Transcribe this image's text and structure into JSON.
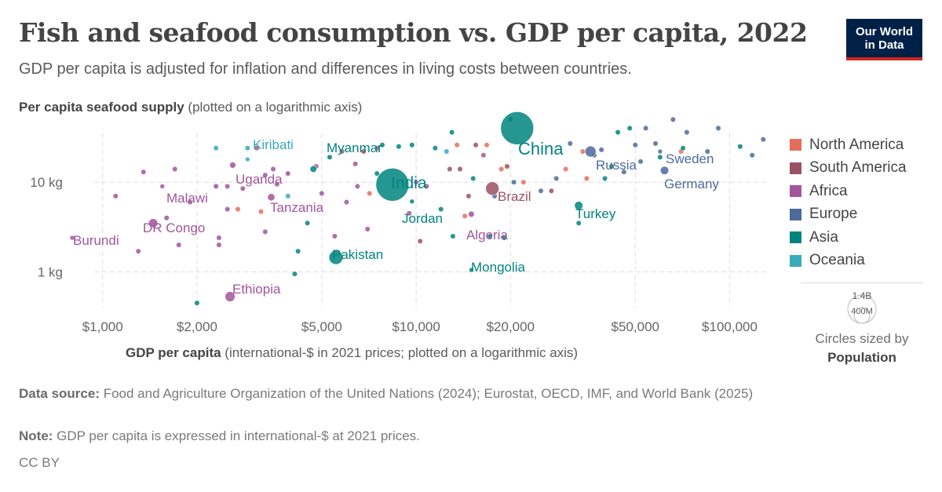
{
  "header": {
    "title": "Fish and seafood consumption vs. GDP per capita, 2022",
    "subtitle": "GDP per capita is adjusted for inflation and differences in living costs between countries.",
    "logo_line1": "Our World",
    "logo_line2": "in Data"
  },
  "axes": {
    "y_label_bold": "Per capita seafood supply",
    "y_label_rest": " (plotted on a logarithmic axis)",
    "x_label_bold": "GDP per capita",
    "x_label_rest": " (international-$ in 2021 prices; plotted on a logarithmic axis)"
  },
  "legend": {
    "regions": [
      {
        "name": "North America",
        "color": "#e56e5a"
      },
      {
        "name": "South America",
        "color": "#9a5164"
      },
      {
        "name": "Africa",
        "color": "#a2559c"
      },
      {
        "name": "Europe",
        "color": "#4c6a9c"
      },
      {
        "name": "Asia",
        "color": "#00847e"
      },
      {
        "name": "Oceania",
        "color": "#38aaba"
      }
    ],
    "size_big": "1.4B",
    "size_small": "400M",
    "size_caption": "Circles sized by",
    "size_caption_bold": "Population"
  },
  "footer": {
    "source_label": "Data source:",
    "source_text": " Food and Agriculture Organization of the United Nations (2024); Eurostat, OECD, IMF, and World Bank (2025)",
    "note_label": "Note:",
    "note_text": " GDP per capita is expressed in international-$ at 2021 prices.",
    "license": "CC BY"
  },
  "chart_data": {
    "type": "scatter",
    "title": "Fish and seafood consumption vs. GDP per capita, 2022",
    "x_scale": "log",
    "y_scale": "log",
    "xlim": [
      800,
      130000
    ],
    "ylim": [
      0.4,
      35
    ],
    "x_ticks": [
      1000,
      2000,
      5000,
      10000,
      20000,
      50000,
      100000
    ],
    "x_tick_labels": [
      "$1,000",
      "$2,000",
      "$5,000",
      "$10,000",
      "$20,000",
      "$50,000",
      "$100,000"
    ],
    "y_ticks": [
      1,
      10
    ],
    "y_tick_labels": [
      "1 kg",
      "10 kg"
    ],
    "grid": true,
    "legend_position": "right",
    "labeled_points": [
      {
        "name": "China",
        "x": 21000,
        "y": 40,
        "region": "Asia",
        "pop_m": 1420
      },
      {
        "name": "India",
        "x": 8400,
        "y": 9.4,
        "region": "Asia",
        "pop_m": 1420
      },
      {
        "name": "Kiribati",
        "x": 2900,
        "y": 18,
        "region": "Oceania",
        "pop_m": 0.13
      },
      {
        "name": "Myanmar",
        "x": 4700,
        "y": 14,
        "region": "Asia",
        "pop_m": 54
      },
      {
        "name": "Uganda",
        "x": 2600,
        "y": 15.5,
        "region": "Africa",
        "pop_m": 47
      },
      {
        "name": "Malawi",
        "x": 1550,
        "y": 9,
        "region": "Africa",
        "pop_m": 20
      },
      {
        "name": "Tanzania",
        "x": 3450,
        "y": 6.8,
        "region": "Africa",
        "pop_m": 65
      },
      {
        "name": "DR Congo",
        "x": 1450,
        "y": 3.5,
        "region": "Africa",
        "pop_m": 100
      },
      {
        "name": "Burundi",
        "x": 800,
        "y": 2.4,
        "region": "Africa",
        "pop_m": 13
      },
      {
        "name": "Ethiopia",
        "x": 2550,
        "y": 0.53,
        "region": "Africa",
        "pop_m": 123
      },
      {
        "name": "Pakistan",
        "x": 5550,
        "y": 1.45,
        "region": "Asia",
        "pop_m": 235
      },
      {
        "name": "Mongolia",
        "x": 15000,
        "y": 1.05,
        "region": "Asia",
        "pop_m": 3.4
      },
      {
        "name": "Jordan",
        "x": 9700,
        "y": 6.1,
        "region": "Asia",
        "pop_m": 11
      },
      {
        "name": "Algeria",
        "x": 15000,
        "y": 4.4,
        "region": "Africa",
        "pop_m": 45
      },
      {
        "name": "Brazil",
        "x": 17500,
        "y": 8.5,
        "region": "South America",
        "pop_m": 215
      },
      {
        "name": "Turkey",
        "x": 33000,
        "y": 5.5,
        "region": "Asia",
        "pop_m": 85
      },
      {
        "name": "Russia",
        "x": 36000,
        "y": 22,
        "region": "Europe",
        "pop_m": 144
      },
      {
        "name": "Sweden",
        "x": 60000,
        "y": 22,
        "region": "Europe",
        "pop_m": 10.5
      },
      {
        "name": "Germany",
        "x": 62000,
        "y": 13.5,
        "region": "Europe",
        "pop_m": 84
      }
    ],
    "unlabeled_points": [
      {
        "x": 1100,
        "y": 7,
        "r": "Africa"
      },
      {
        "x": 1350,
        "y": 13,
        "r": "Africa"
      },
      {
        "x": 1300,
        "y": 1.7,
        "r": "Africa"
      },
      {
        "x": 1750,
        "y": 2,
        "r": "Africa"
      },
      {
        "x": 1600,
        "y": 4,
        "r": "Africa"
      },
      {
        "x": 1700,
        "y": 14,
        "r": "Africa"
      },
      {
        "x": 1900,
        "y": 6,
        "r": "Africa"
      },
      {
        "x": 2000,
        "y": 0.45,
        "r": "Asia"
      },
      {
        "x": 2300,
        "y": 24,
        "r": "Oceania"
      },
      {
        "x": 2300,
        "y": 9,
        "r": "Africa"
      },
      {
        "x": 2350,
        "y": 2.4,
        "r": "Africa"
      },
      {
        "x": 2350,
        "y": 2,
        "r": "Africa"
      },
      {
        "x": 2500,
        "y": 9,
        "r": "Africa"
      },
      {
        "x": 2500,
        "y": 5,
        "r": "Africa"
      },
      {
        "x": 2700,
        "y": 5,
        "r": "North America"
      },
      {
        "x": 2800,
        "y": 8.5,
        "r": "Africa"
      },
      {
        "x": 2900,
        "y": 24,
        "r": "Oceania"
      },
      {
        "x": 3100,
        "y": 24,
        "r": "Africa"
      },
      {
        "x": 3200,
        "y": 4.7,
        "r": "North America"
      },
      {
        "x": 3300,
        "y": 12,
        "r": "Africa"
      },
      {
        "x": 3300,
        "y": 2.8,
        "r": "Africa"
      },
      {
        "x": 3500,
        "y": 14,
        "r": "Africa"
      },
      {
        "x": 3600,
        "y": 9.5,
        "r": "Africa"
      },
      {
        "x": 3900,
        "y": 12.5,
        "r": "Africa"
      },
      {
        "x": 3900,
        "y": 7,
        "r": "Oceania"
      },
      {
        "x": 4100,
        "y": 0.95,
        "r": "Asia"
      },
      {
        "x": 4200,
        "y": 1.7,
        "r": "Asia"
      },
      {
        "x": 4500,
        "y": 3.5,
        "r": "Asia"
      },
      {
        "x": 4800,
        "y": 15,
        "r": "Africa"
      },
      {
        "x": 5000,
        "y": 7.5,
        "r": "Africa"
      },
      {
        "x": 5300,
        "y": 19,
        "r": "Asia"
      },
      {
        "x": 5500,
        "y": 2.5,
        "r": "Africa"
      },
      {
        "x": 5800,
        "y": 22,
        "r": "Africa"
      },
      {
        "x": 6000,
        "y": 6,
        "r": "Africa"
      },
      {
        "x": 6400,
        "y": 16,
        "r": "Africa"
      },
      {
        "x": 6500,
        "y": 9,
        "r": "Africa"
      },
      {
        "x": 6800,
        "y": 22,
        "r": "South America"
      },
      {
        "x": 7000,
        "y": 3,
        "r": "Africa"
      },
      {
        "x": 7100,
        "y": 7.5,
        "r": "North America"
      },
      {
        "x": 7500,
        "y": 12.5,
        "r": "Asia"
      },
      {
        "x": 7500,
        "y": 24,
        "r": "Africa"
      },
      {
        "x": 7800,
        "y": 26,
        "r": "Asia"
      },
      {
        "x": 8800,
        "y": 25,
        "r": "Asia"
      },
      {
        "x": 9500,
        "y": 4.5,
        "r": "Africa"
      },
      {
        "x": 9700,
        "y": 26,
        "r": "Asia"
      },
      {
        "x": 10000,
        "y": 10,
        "r": "Africa"
      },
      {
        "x": 10300,
        "y": 2.2,
        "r": "South America"
      },
      {
        "x": 10800,
        "y": 9,
        "r": "Africa"
      },
      {
        "x": 11500,
        "y": 24,
        "r": "Asia"
      },
      {
        "x": 12000,
        "y": 5,
        "r": "Asia"
      },
      {
        "x": 12500,
        "y": 22,
        "r": "Oceania"
      },
      {
        "x": 12800,
        "y": 14,
        "r": "South America"
      },
      {
        "x": 13000,
        "y": 36,
        "r": "Asia"
      },
      {
        "x": 13100,
        "y": 2.5,
        "r": "Asia"
      },
      {
        "x": 13500,
        "y": 26,
        "r": "North America"
      },
      {
        "x": 13800,
        "y": 14,
        "r": "South America"
      },
      {
        "x": 14300,
        "y": 4.2,
        "r": "North America"
      },
      {
        "x": 14700,
        "y": 7,
        "r": "South America"
      },
      {
        "x": 15200,
        "y": 11,
        "r": "Asia"
      },
      {
        "x": 15500,
        "y": 26,
        "r": "South America"
      },
      {
        "x": 16400,
        "y": 20,
        "r": "Africa"
      },
      {
        "x": 16800,
        "y": 26,
        "r": "North America"
      },
      {
        "x": 17200,
        "y": 2.5,
        "r": "Asia"
      },
      {
        "x": 17800,
        "y": 7,
        "r": "Europe"
      },
      {
        "x": 18700,
        "y": 14,
        "r": "North America"
      },
      {
        "x": 19100,
        "y": 2.4,
        "r": "Asia"
      },
      {
        "x": 19500,
        "y": 15,
        "r": "South America"
      },
      {
        "x": 20000,
        "y": 50,
        "r": "Asia"
      },
      {
        "x": 20500,
        "y": 10,
        "r": "Europe"
      },
      {
        "x": 22000,
        "y": 10,
        "r": "North America"
      },
      {
        "x": 25000,
        "y": 8,
        "r": "Europe"
      },
      {
        "x": 27000,
        "y": 8,
        "r": "South America"
      },
      {
        "x": 28000,
        "y": 11,
        "r": "Europe"
      },
      {
        "x": 30000,
        "y": 14,
        "r": "North America"
      },
      {
        "x": 31000,
        "y": 27,
        "r": "Europe"
      },
      {
        "x": 33000,
        "y": 3.5,
        "r": "Asia"
      },
      {
        "x": 34000,
        "y": 22,
        "r": "North America"
      },
      {
        "x": 35000,
        "y": 11,
        "r": "North America"
      },
      {
        "x": 37000,
        "y": 20,
        "r": "Europe"
      },
      {
        "x": 39000,
        "y": 23,
        "r": "Europe"
      },
      {
        "x": 40000,
        "y": 11,
        "r": "Asia"
      },
      {
        "x": 42000,
        "y": 15,
        "r": "Asia"
      },
      {
        "x": 44000,
        "y": 36,
        "r": "Asia"
      },
      {
        "x": 46000,
        "y": 13,
        "r": "Europe"
      },
      {
        "x": 48000,
        "y": 40,
        "r": "Asia"
      },
      {
        "x": 50000,
        "y": 26,
        "r": "Europe"
      },
      {
        "x": 52000,
        "y": 17,
        "r": "Europe"
      },
      {
        "x": 54000,
        "y": 40,
        "r": "Europe"
      },
      {
        "x": 58000,
        "y": 27,
        "r": "Europe"
      },
      {
        "x": 60000,
        "y": 19,
        "r": "Asia"
      },
      {
        "x": 66000,
        "y": 50,
        "r": "Europe"
      },
      {
        "x": 70000,
        "y": 22,
        "r": "North America"
      },
      {
        "x": 71000,
        "y": 24,
        "r": "Asia"
      },
      {
        "x": 73000,
        "y": 36,
        "r": "Europe"
      },
      {
        "x": 85000,
        "y": 22,
        "r": "Europe"
      },
      {
        "x": 92000,
        "y": 40,
        "r": "Europe"
      },
      {
        "x": 108000,
        "y": 25,
        "r": "Asia"
      },
      {
        "x": 118000,
        "y": 20,
        "r": "Europe"
      },
      {
        "x": 128000,
        "y": 30,
        "r": "Europe"
      }
    ]
  }
}
